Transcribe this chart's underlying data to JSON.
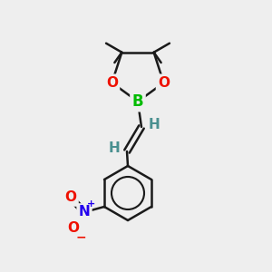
{
  "bg_color": "#eeeeee",
  "bond_color": "#1a1a1a",
  "B_color": "#00bb00",
  "O_color": "#ee1100",
  "N_color": "#2200ee",
  "NO_O_color": "#ee1100",
  "H_color": "#4a9090",
  "line_width": 1.8,
  "font_size_atom": 11,
  "fig_width": 3.0,
  "fig_height": 3.0,
  "dpi": 100,
  "xlim": [
    0,
    300
  ],
  "ylim": [
    0,
    300
  ]
}
